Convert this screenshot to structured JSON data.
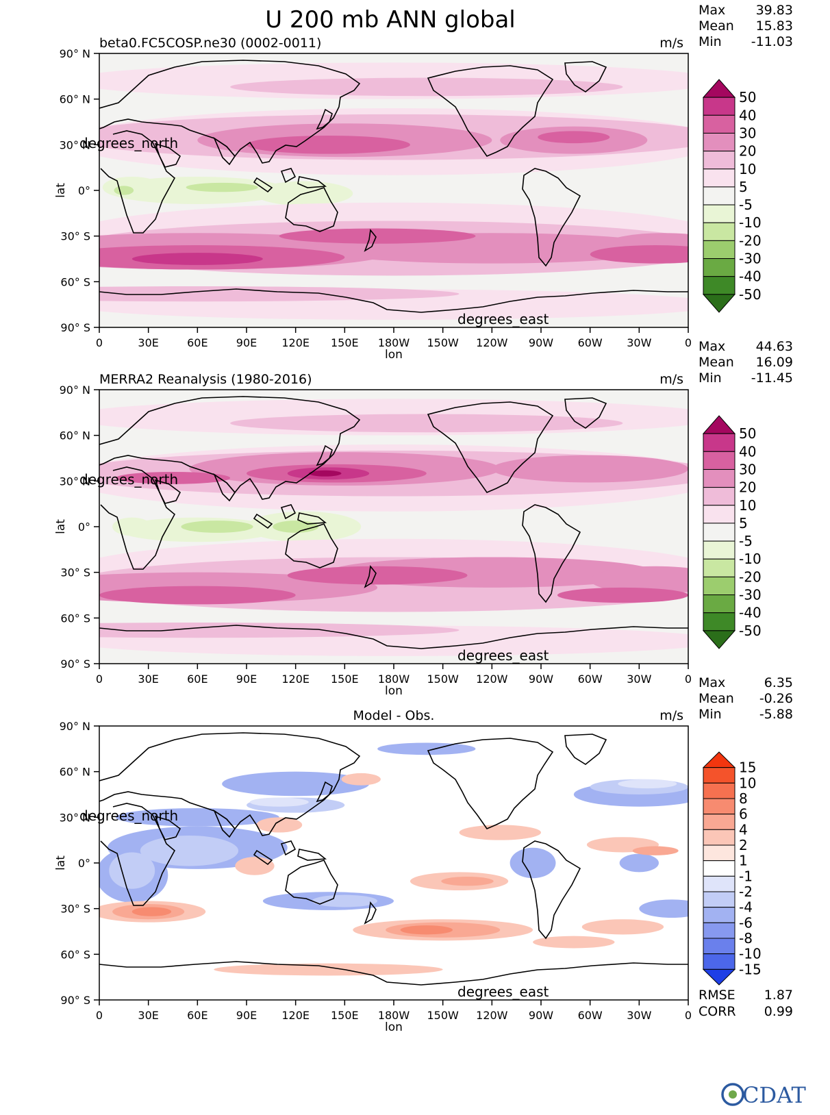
{
  "chart_data": {
    "type": "heatmap",
    "title": "U 200 mb ANN global",
    "units": "m/s",
    "panels": [
      {
        "name": "model",
        "subtitle": "beta0.FC5COSP.ne30 (0002-0011)",
        "units": "m/s",
        "stats": [
          {
            "label": "Max",
            "value": "39.83"
          },
          {
            "label": "Mean",
            "value": "15.83"
          },
          {
            "label": "Min",
            "value": "-11.03"
          }
        ],
        "colorbar": {
          "levels": [
            "50",
            "40",
            "30",
            "20",
            "10",
            "5",
            "-5",
            "-10",
            "-20",
            "-30",
            "-40",
            "-50"
          ],
          "colors": [
            "#a4075f",
            "#c8378a",
            "#d861a0",
            "#e38fbd",
            "#efbcd9",
            "#f9e2ee",
            "#f3f3f1",
            "#e9f5d6",
            "#c9e7a2",
            "#9ccd6e",
            "#6aaa43",
            "#3e8927",
            "#2b6e1a"
          ]
        }
      },
      {
        "name": "observation",
        "subtitle": "MERRA2 Reanalysis (1980-2016)",
        "units": "m/s",
        "stats": [
          {
            "label": "Max",
            "value": "44.63"
          },
          {
            "label": "Mean",
            "value": "16.09"
          },
          {
            "label": "Min",
            "value": "-11.45"
          }
        ],
        "colorbar": {
          "levels": [
            "50",
            "40",
            "30",
            "20",
            "10",
            "5",
            "-5",
            "-10",
            "-20",
            "-30",
            "-40",
            "-50"
          ],
          "colors": [
            "#a4075f",
            "#c8378a",
            "#d861a0",
            "#e38fbd",
            "#efbcd9",
            "#f9e2ee",
            "#f3f3f1",
            "#e9f5d6",
            "#c9e7a2",
            "#9ccd6e",
            "#6aaa43",
            "#3e8927",
            "#2b6e1a"
          ]
        }
      },
      {
        "name": "difference",
        "subtitle": "Model - Obs.",
        "units": "m/s",
        "stats": [
          {
            "label": "Max",
            "value": "6.35"
          },
          {
            "label": "Mean",
            "value": "-0.26"
          },
          {
            "label": "Min",
            "value": "-5.88"
          }
        ],
        "extra_stats": [
          {
            "label": "RMSE",
            "value": "1.87"
          },
          {
            "label": "CORR",
            "value": "0.99"
          }
        ],
        "colorbar": {
          "levels": [
            "15",
            "10",
            "8",
            "6",
            "4",
            "2",
            "1",
            "-1",
            "-2",
            "-4",
            "-6",
            "-8",
            "-10",
            "-15"
          ],
          "colors": [
            "#f2360f",
            "#f4532b",
            "#f67150",
            "#f78b70",
            "#f9a893",
            "#fbc6b7",
            "#fde6de",
            "#ffffff",
            "#dfe4fa",
            "#c2cdf6",
            "#a2b2f2",
            "#8799ef",
            "#6a80ec",
            "#4c67ea",
            "#1e3fe6"
          ]
        }
      }
    ],
    "x_axis": {
      "label": "lon",
      "tick_labels": [
        "0",
        "30E",
        "60E",
        "90E",
        "120E",
        "150E",
        "180W",
        "150W",
        "120W",
        "90W",
        "60W",
        "30W",
        "0"
      ],
      "range": [
        0,
        360
      ],
      "annotation": "degrees_east"
    },
    "y_axis": {
      "label": "lat",
      "tick_labels": [
        "90° N",
        "60° N",
        "30° N",
        "0°",
        "30° S",
        "60° S",
        "90° S"
      ],
      "range": [
        -90,
        90
      ],
      "annotation": "degrees_north"
    }
  },
  "logo": {
    "text": "CDAT"
  }
}
